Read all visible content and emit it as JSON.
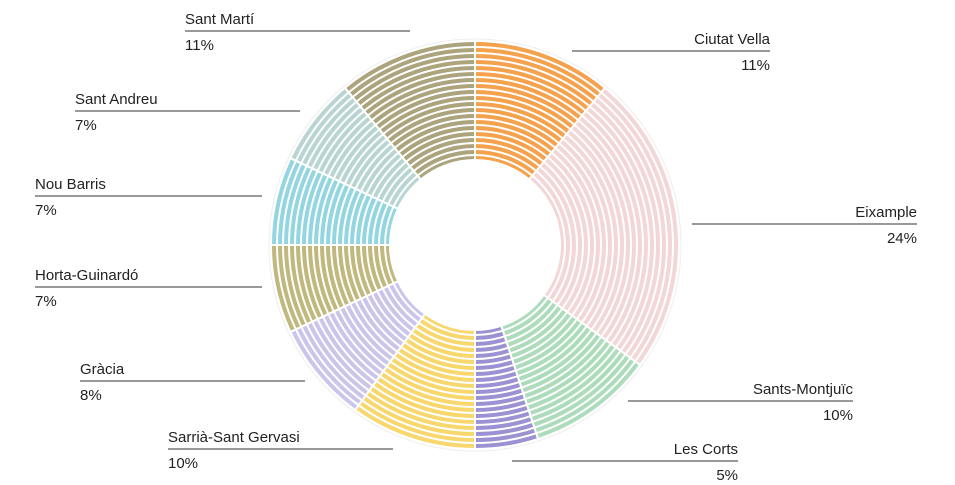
{
  "chart_data": {
    "type": "donut",
    "categories": [
      "Ciutat Vella",
      "Eixample",
      "Sants-Montjuïc",
      "Les Corts",
      "Sarrià-Sant Gervasi",
      "Gràcia",
      "Horta-Guinardó",
      "Nou Barris",
      "Sant Andreu",
      "Sant Martí"
    ],
    "values": [
      11,
      24,
      10,
      5,
      10,
      8,
      7,
      7,
      7,
      11
    ],
    "value_labels": [
      "11%",
      "24%",
      "10%",
      "5%",
      "10%",
      "8%",
      "7%",
      "7%",
      "7%",
      "11%"
    ],
    "colors": [
      "#f5a24e",
      "#f3d6d6",
      "#acdcbb",
      "#9c91d2",
      "#f8d86e",
      "#cbc5ea",
      "#c0b87d",
      "#93d5e0",
      "#b8d5d1",
      "#aca47c"
    ]
  }
}
